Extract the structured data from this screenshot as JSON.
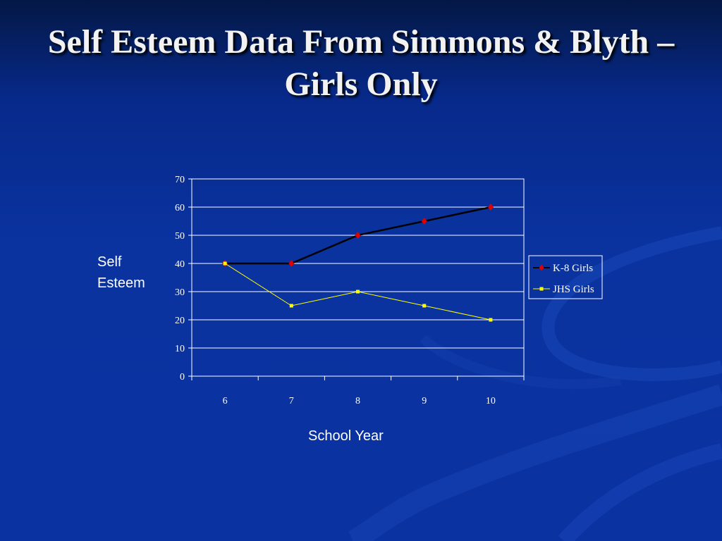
{
  "slide": {
    "title": "Self Esteem Data From Simmons & Blyth – Girls Only"
  },
  "colors": {
    "background": "#0a32a0",
    "k8_marker": "#e00000",
    "k8_line": "#000000",
    "jhs_line": "#ffff00",
    "gridline": "#ffffff"
  },
  "chart_data": {
    "type": "line",
    "categories": [
      "6",
      "7",
      "8",
      "9",
      "10"
    ],
    "series": [
      {
        "name": "K-8 Girls",
        "values": [
          40,
          40,
          50,
          55,
          60
        ],
        "marker": "diamond"
      },
      {
        "name": "JHS Girls",
        "values": [
          40,
          25,
          30,
          25,
          20
        ],
        "marker": "square"
      }
    ],
    "ylim": [
      0,
      70
    ],
    "yticks": [
      0,
      10,
      20,
      30,
      40,
      50,
      60,
      70
    ],
    "ylabel_lines": [
      "Self",
      "Esteem"
    ],
    "xlabel": "School Year",
    "grid": "horizontal",
    "legend_position": "right"
  }
}
